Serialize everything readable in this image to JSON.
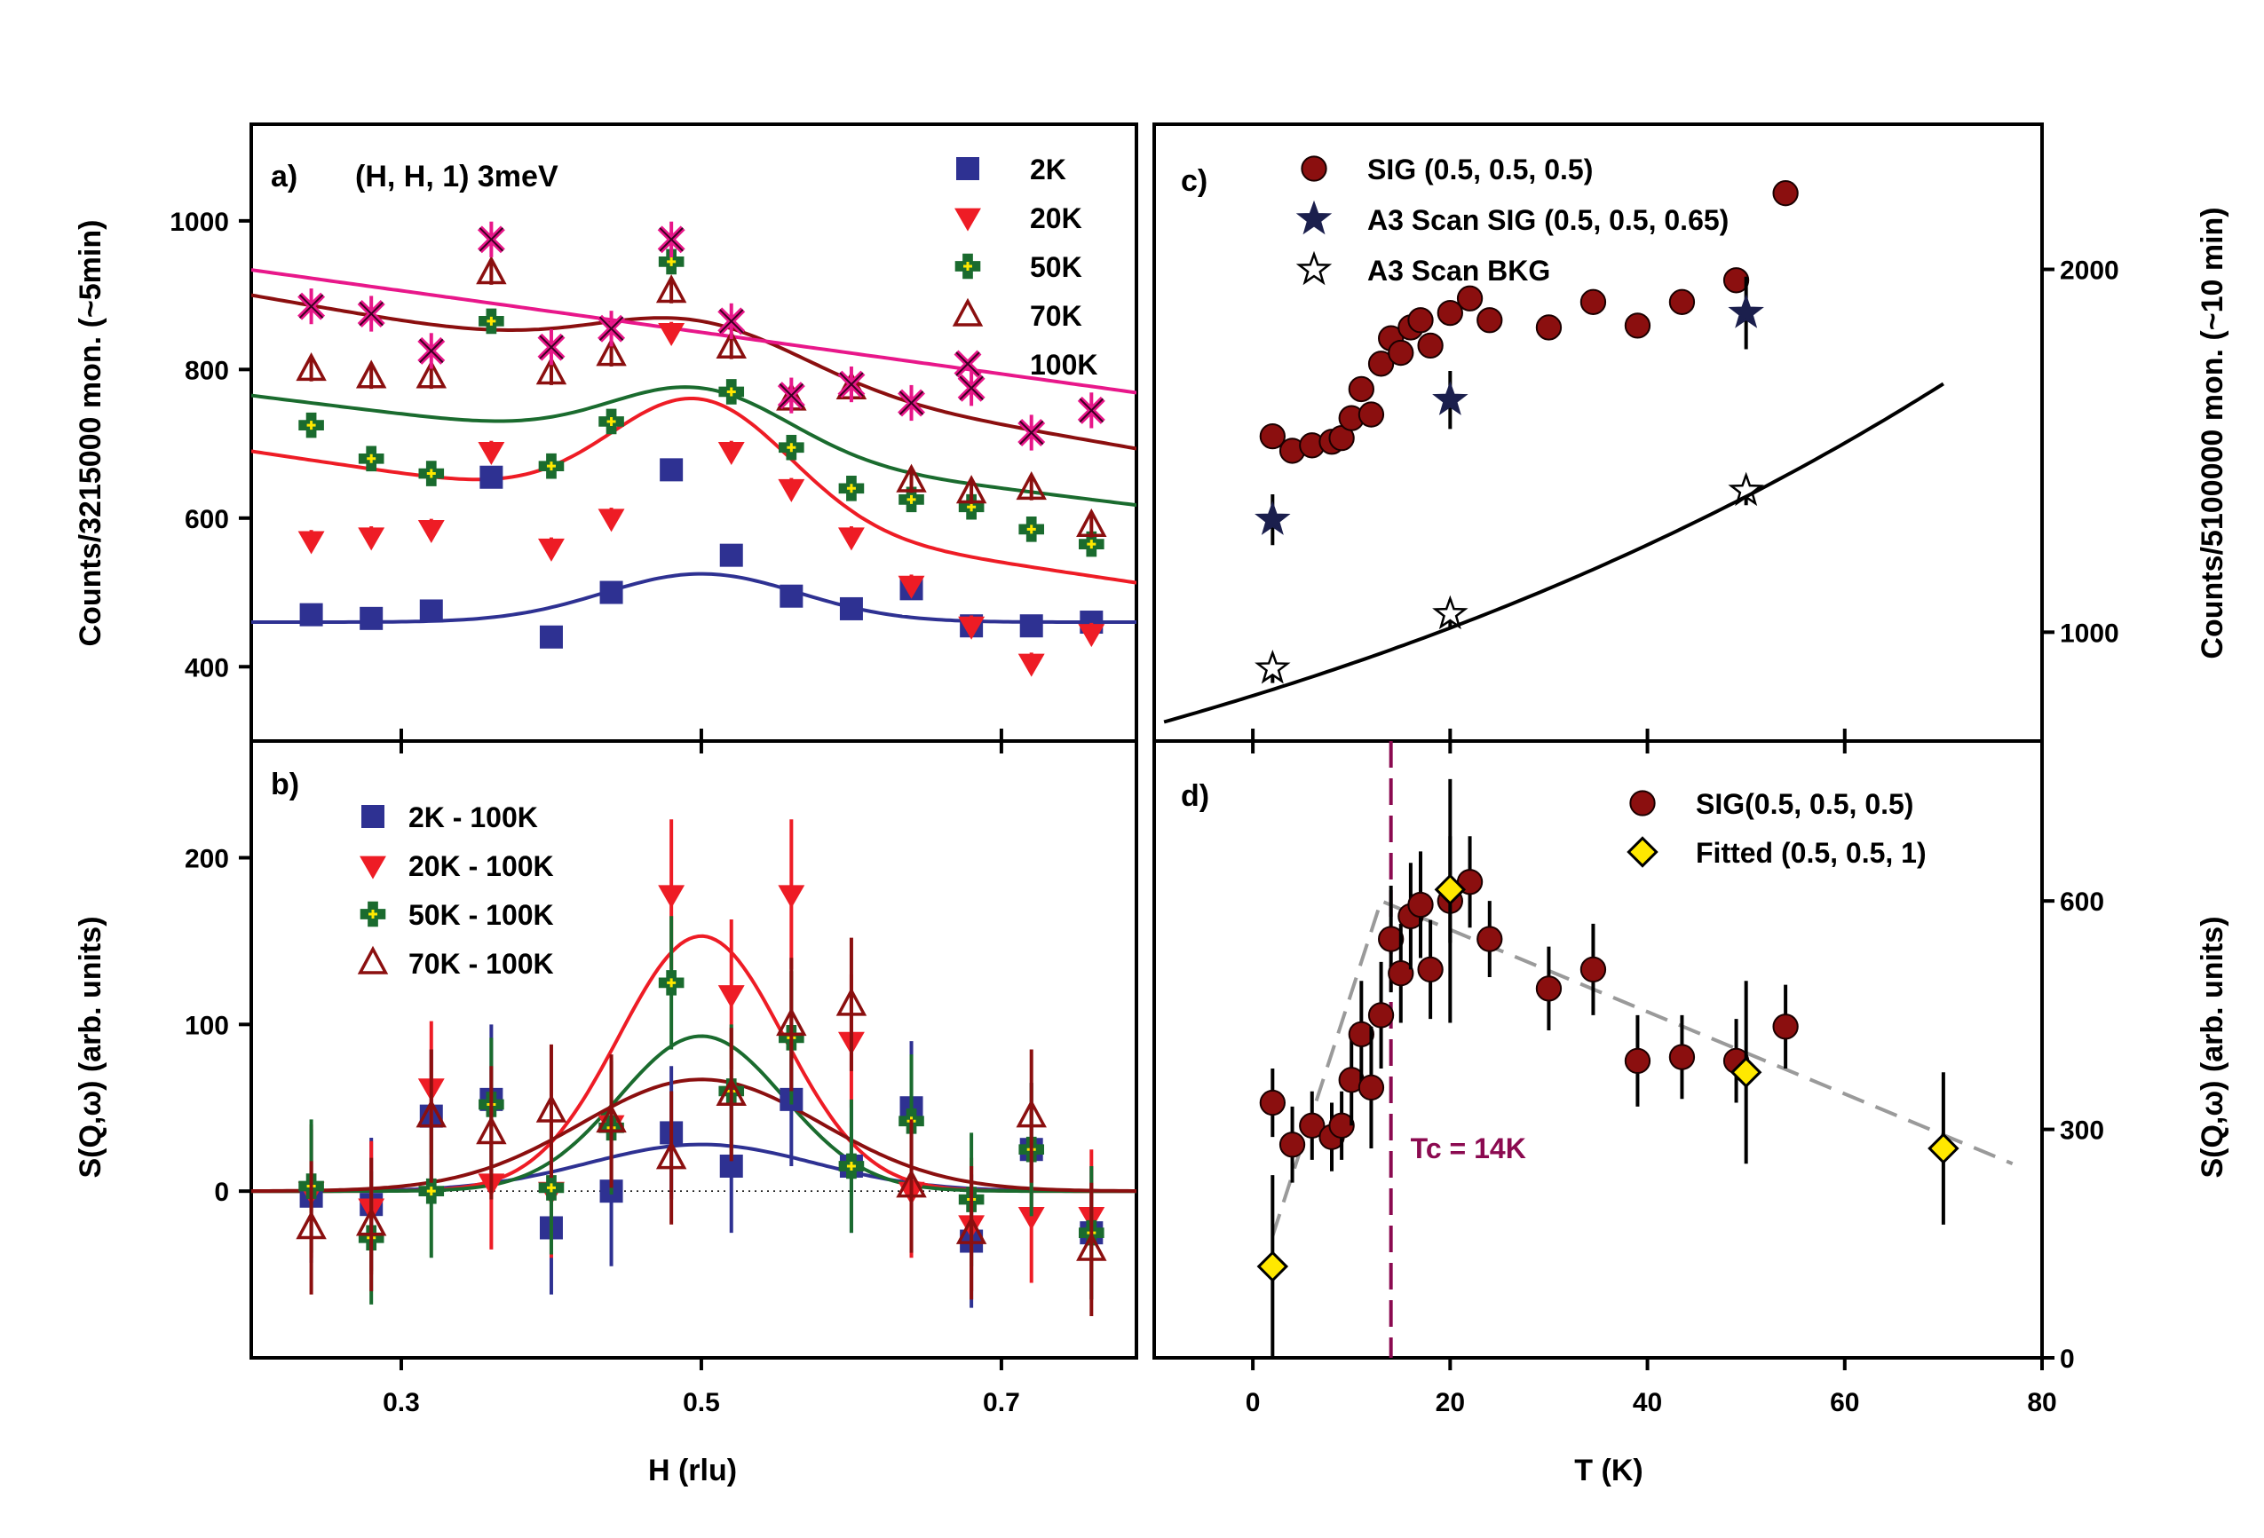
{
  "chart_data": [
    {
      "id": "a",
      "type": "scatter",
      "panel_label": "a)",
      "title": "(H, H, 1) 3meV",
      "xlabel": "",
      "ylabel": "Counts/3215000 mon. (~5min)",
      "xlim": [
        0.2,
        0.79
      ],
      "ylim": [
        300,
        1130
      ],
      "yticks": [
        400,
        600,
        800,
        1000
      ],
      "xticks": [
        0.3,
        0.5,
        0.7
      ],
      "x": [
        0.24,
        0.28,
        0.32,
        0.36,
        0.4,
        0.44,
        0.48,
        0.52,
        0.56,
        0.6,
        0.64,
        0.68,
        0.72,
        0.76
      ],
      "series": [
        {
          "name": "2K",
          "marker": "square",
          "color": "#2e3192",
          "values": [
            470,
            465,
            475,
            655,
            440,
            500,
            665,
            550,
            495,
            478,
            505,
            455,
            455,
            460
          ],
          "errors": [
            14,
            14,
            14,
            14,
            14,
            14,
            14,
            14,
            14,
            14,
            14,
            14,
            14,
            14
          ],
          "fit": {
            "base": 460,
            "amp": 65,
            "center": 0.5,
            "sigma": 0.065,
            "slope": 0
          }
        },
        {
          "name": "20K",
          "marker": "triangle-down",
          "color": "#ee1c25",
          "values": [
            570,
            575,
            585,
            690,
            560,
            600,
            850,
            690,
            640,
            575,
            510,
            455,
            405,
            445
          ],
          "errors": [
            14,
            14,
            14,
            14,
            14,
            14,
            14,
            14,
            14,
            14,
            14,
            14,
            14,
            14
          ],
          "fit": {
            "base": 600,
            "amp": 160,
            "center": 0.5,
            "sigma": 0.06,
            "slope": -300
          }
        },
        {
          "name": "50K",
          "marker": "cross",
          "color": "#1a6b2e",
          "values": [
            725,
            680,
            660,
            865,
            670,
            730,
            945,
            770,
            695,
            640,
            625,
            615,
            585,
            565
          ],
          "errors": [
            16,
            16,
            16,
            16,
            16,
            16,
            16,
            16,
            16,
            16,
            16,
            16,
            16,
            16
          ],
          "fit": {
            "base": 690,
            "amp": 85,
            "center": 0.5,
            "sigma": 0.06,
            "slope": -250
          }
        },
        {
          "name": "70K",
          "marker": "triangle-up-open",
          "color": "#8b0f0f",
          "values": [
            800,
            790,
            790,
            930,
            795,
            820,
            905,
            830,
            760,
            775,
            650,
            635,
            640,
            590
          ],
          "errors": [
            16,
            16,
            16,
            16,
            16,
            16,
            16,
            16,
            16,
            16,
            16,
            16,
            16,
            16
          ],
          "fit": {
            "base": 795,
            "amp": 70,
            "center": 0.5,
            "sigma": 0.07,
            "slope": -350
          }
        },
        {
          "name": "100K",
          "marker": "x",
          "color": "#e8178a",
          "values": [
            885,
            875,
            825,
            975,
            830,
            855,
            975,
            865,
            765,
            780,
            755,
            775,
            715,
            745
          ],
          "errors": [
            24,
            24,
            24,
            24,
            24,
            24,
            24,
            24,
            24,
            24,
            24,
            24,
            24,
            24
          ],
          "fit": {
            "base": 850,
            "amp": 0,
            "center": 0.5,
            "sigma": 0.06,
            "slope": -280
          }
        }
      ]
    },
    {
      "id": "b",
      "type": "scatter",
      "panel_label": "b)",
      "title": "",
      "xlabel": "H (rlu)",
      "ylabel": "S(Q,ω) (arb. units)",
      "xlim": [
        0.2,
        0.79
      ],
      "ylim": [
        -100,
        270
      ],
      "yticks": [
        0,
        100,
        200
      ],
      "xticks": [
        0.3,
        0.5,
        0.7
      ],
      "x": [
        0.24,
        0.28,
        0.32,
        0.36,
        0.4,
        0.44,
        0.48,
        0.52,
        0.56,
        0.6,
        0.64,
        0.68,
        0.72,
        0.76
      ],
      "series": [
        {
          "name": "2K - 100K",
          "marker": "square",
          "color": "#2e3192",
          "values": [
            -3,
            -8,
            45,
            55,
            -22,
            0,
            35,
            15,
            55,
            15,
            50,
            -30,
            25,
            -25
          ],
          "errors": [
            40,
            40,
            40,
            45,
            40,
            45,
            40,
            40,
            40,
            40,
            40,
            40,
            40,
            40
          ],
          "fit": {
            "base": 0,
            "amp": 28,
            "center": 0.5,
            "sigma": 0.075,
            "slope": 0
          }
        },
        {
          "name": "20K  - 100K",
          "marker": "triangle-down",
          "color": "#ee1c25",
          "values": [
            0,
            -10,
            62,
            5,
            0,
            40,
            178,
            118,
            178,
            90,
            0,
            -20,
            -15,
            -15
          ],
          "errors": [
            40,
            40,
            40,
            40,
            40,
            40,
            45,
            45,
            45,
            40,
            40,
            40,
            40,
            40
          ],
          "fit": {
            "base": 0,
            "amp": 153,
            "center": 0.5,
            "sigma": 0.055,
            "slope": 0
          }
        },
        {
          "name": "50K - 100K",
          "marker": "cross",
          "color": "#1a6b2e",
          "values": [
            3,
            -28,
            0,
            52,
            2,
            38,
            125,
            60,
            92,
            15,
            42,
            -5,
            25,
            -25
          ],
          "errors": [
            40,
            40,
            40,
            40,
            40,
            40,
            40,
            40,
            40,
            40,
            40,
            40,
            40,
            40
          ],
          "fit": {
            "base": 0,
            "amp": 93,
            "center": 0.5,
            "sigma": 0.055,
            "slope": 0
          }
        },
        {
          "name": "70K - 100K",
          "marker": "triangle-up-open",
          "color": "#8b0f0f",
          "values": [
            -22,
            -20,
            45,
            35,
            48,
            42,
            20,
            58,
            100,
            112,
            3,
            -25,
            45,
            -35
          ],
          "errors": [
            40,
            40,
            40,
            40,
            40,
            40,
            40,
            40,
            40,
            40,
            40,
            40,
            40,
            40
          ],
          "fit": {
            "base": 0,
            "amp": 67,
            "center": 0.5,
            "sigma": 0.08,
            "slope": 0
          }
        }
      ]
    },
    {
      "id": "c",
      "type": "scatter",
      "panel_label": "c)",
      "title": "",
      "xlabel": "",
      "ylabel": "Counts/5100000 mon. (~10 min)",
      "yaxis_side": "right",
      "xlim": [
        -10,
        80
      ],
      "ylim": [
        700,
        2400
      ],
      "yticks": [
        1000,
        2000
      ],
      "xticks": [
        0,
        20,
        40,
        60
      ],
      "series": [
        {
          "name": "SIG (0.5, 0.5, 0.5)",
          "marker": "circle",
          "color": "#8b0f0f",
          "x": [
            2,
            4,
            6,
            8,
            9,
            10,
            11,
            12,
            13,
            14,
            15,
            16,
            17,
            18,
            20,
            22,
            24,
            30,
            34.5,
            39,
            43.5,
            49,
            54
          ],
          "values": [
            1540,
            1500,
            1515,
            1525,
            1535,
            1590,
            1670,
            1600,
            1740,
            1810,
            1770,
            1840,
            1860,
            1790,
            1880,
            1920,
            1860,
            1840,
            1910,
            1845,
            1910,
            1970,
            2210
          ],
          "errors": [
            0,
            0,
            0,
            0,
            0,
            0,
            0,
            0,
            0,
            0,
            0,
            0,
            0,
            0,
            0,
            0,
            0,
            0,
            0,
            0,
            0,
            0,
            0
          ]
        },
        {
          "name": "A3 Scan SIG (0.5, 0.5, 0.65)",
          "marker": "star",
          "color": "#1b1f4d",
          "x": [
            2,
            20,
            50
          ],
          "values": [
            1310,
            1640,
            1880
          ],
          "errors": [
            70,
            80,
            100
          ]
        },
        {
          "name": "A3 Scan BKG",
          "marker": "star-open",
          "color": "#000000",
          "x": [
            2,
            20,
            50
          ],
          "values": [
            900,
            1050,
            1390
          ],
          "errors": [
            40,
            40,
            40
          ]
        },
        {
          "name": "fit",
          "type": "line",
          "color": "#000000",
          "fit": {
            "A": 825,
            "k": 0.0102,
            "xmin": -9,
            "xmax": 70
          }
        }
      ]
    },
    {
      "id": "d",
      "type": "scatter",
      "panel_label": "d)",
      "title": "",
      "xlabel": "T (K)",
      "ylabel": "S(Q,ω) (arb. units)",
      "yaxis_side": "right",
      "xlim": [
        -10,
        80
      ],
      "ylim": [
        0,
        810
      ],
      "yticks": [
        0,
        300,
        600
      ],
      "xticks": [
        0,
        20,
        40,
        60,
        80
      ],
      "annotation": "T<sub>c</sub> = 14K",
      "tc_text": "Tc = 14K",
      "tc": 14,
      "series": [
        {
          "name": "SIG(0.5, 0.5, 0.5)",
          "marker": "circle",
          "color": "#8b0f0f",
          "x": [
            2,
            4,
            6,
            8,
            9,
            10,
            11,
            12,
            13,
            14,
            15,
            16,
            17,
            18,
            20,
            22,
            24,
            30,
            34.5,
            39,
            43.5,
            49,
            54
          ],
          "values": [
            335,
            280,
            305,
            290,
            305,
            365,
            425,
            355,
            450,
            550,
            505,
            580,
            595,
            510,
            600,
            625,
            550,
            485,
            510,
            390,
            395,
            390,
            435
          ],
          "errors": [
            45,
            50,
            45,
            45,
            45,
            60,
            70,
            80,
            70,
            70,
            65,
            70,
            70,
            65,
            160,
            60,
            50,
            55,
            60,
            60,
            55,
            55,
            55
          ]
        },
        {
          "name": "Fitted (0.5, 0.5, 1)",
          "marker": "diamond",
          "color": "#ffe800",
          "x": [
            2,
            20,
            50,
            70
          ],
          "values": [
            120,
            615,
            375,
            275
          ],
          "errors": [
            120,
            70,
            120,
            100
          ]
        },
        {
          "name": "guide",
          "type": "dashed-line",
          "color": "#9a9a9a",
          "x": [
            2,
            13,
            77
          ],
          "values": [
            160,
            600,
            255
          ]
        }
      ]
    }
  ]
}
